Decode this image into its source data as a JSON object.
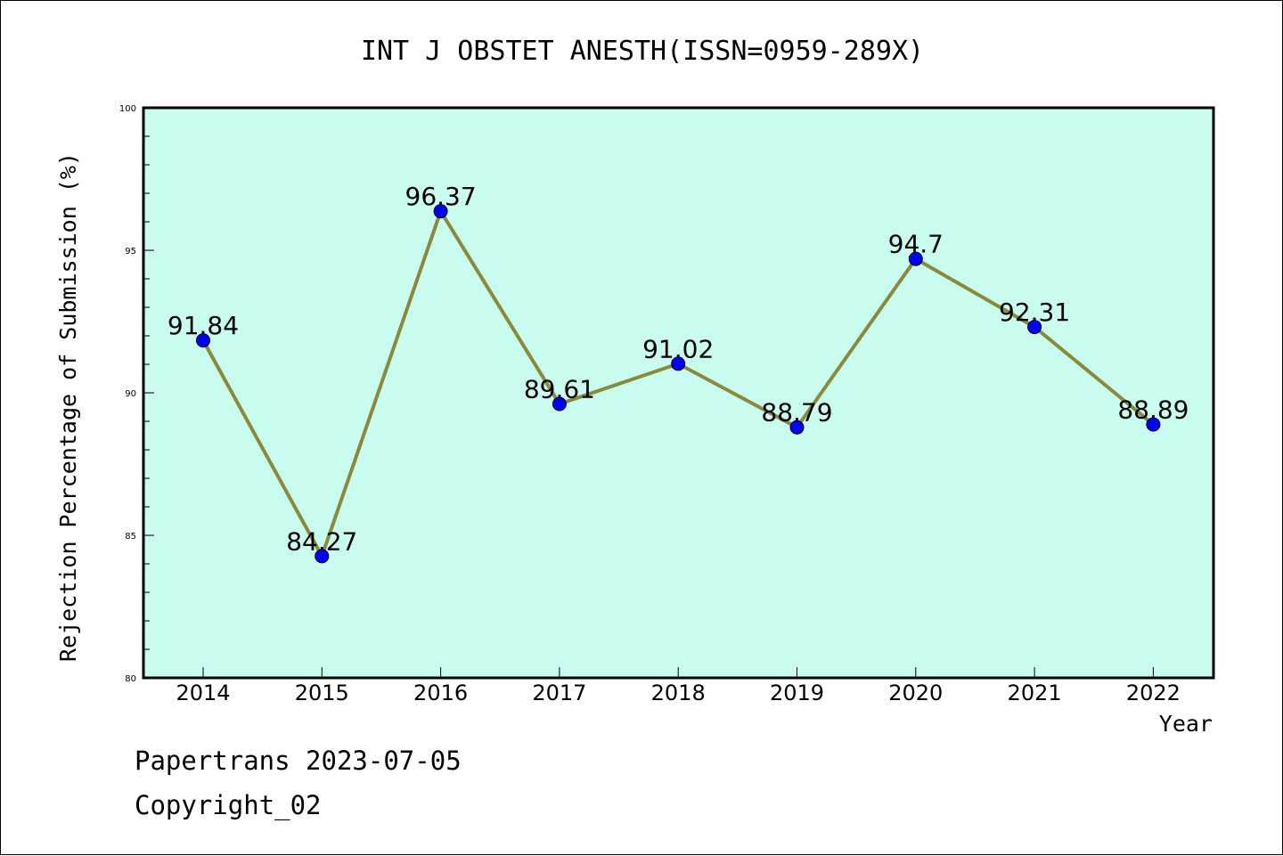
{
  "chart_data": {
    "type": "line",
    "title": "INT J OBSTET ANESTH(ISSN=0959-289X)",
    "xlabel": "Year",
    "ylabel": "Rejection Percentage of Submission (%)",
    "x": [
      "2014",
      "2015",
      "2016",
      "2017",
      "2018",
      "2019",
      "2020",
      "2021",
      "2022"
    ],
    "series": [
      {
        "values": [
          91.84,
          84.27,
          96.37,
          89.61,
          91.02,
          88.79,
          94.7,
          92.31,
          88.89
        ],
        "labels": [
          "91.84",
          "84.27",
          "96.37",
          "89.61",
          "91.02",
          "88.79",
          "94.7",
          "92.31",
          "88.89"
        ],
        "line_color": "#8b8a3a",
        "marker_color": "#0000ff"
      }
    ],
    "ylim": [
      80,
      100
    ],
    "yticks": [
      80,
      85,
      90,
      95,
      100
    ],
    "ytick_labels": [
      "80",
      "85",
      "90",
      "95",
      "100"
    ],
    "plot_background": "#c8fcee",
    "grid": false
  },
  "footer": {
    "source": "Papertrans 2023-07-05",
    "copyright": "Copyright_02"
  }
}
